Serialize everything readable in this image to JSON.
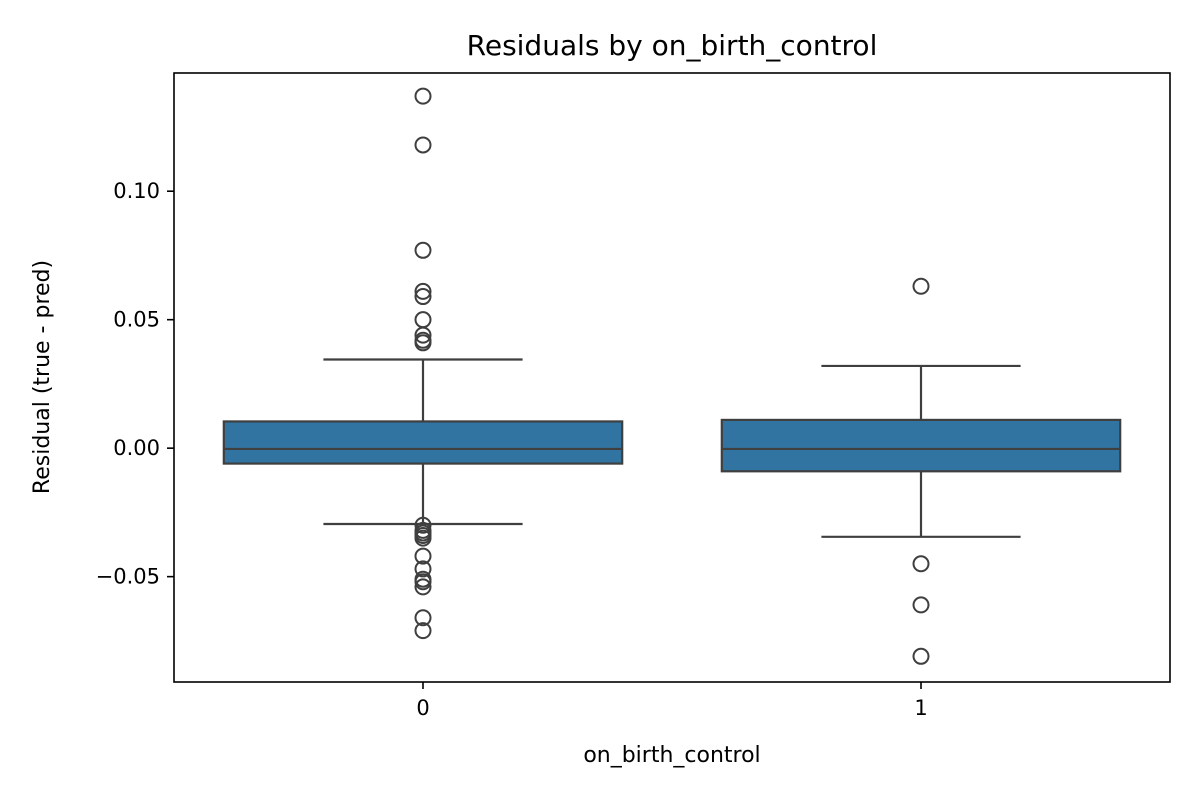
{
  "chart_data": {
    "type": "box",
    "title": "Residuals by on_birth_control",
    "xlabel": "on_birth_control",
    "ylabel": "Residual (true - pred)",
    "ylim": [
      -0.091,
      0.146
    ],
    "yticks": [
      -0.05,
      0.0,
      0.05,
      0.1
    ],
    "ytick_labels": [
      "−0.05",
      "0.00",
      "0.05",
      "0.10"
    ],
    "grid": false,
    "legend": "none",
    "box_color": "#3274a1",
    "line_color": "#3f3f3f",
    "categories": [
      "0",
      "1"
    ],
    "boxes": [
      {
        "category": "0",
        "whisker_low": -0.0295,
        "q1": -0.006,
        "median": -0.0003,
        "q3": 0.0104,
        "whisker_high": 0.0345,
        "outliers": [
          0.137,
          0.118,
          0.077,
          0.061,
          0.059,
          0.05,
          0.044,
          0.042,
          0.041,
          -0.03,
          -0.032,
          -0.033,
          -0.034,
          -0.035,
          -0.042,
          -0.047,
          -0.051,
          -0.052,
          -0.054,
          -0.066,
          -0.071
        ]
      },
      {
        "category": "1",
        "whisker_low": -0.0345,
        "q1": -0.009,
        "median": -0.0003,
        "q3": 0.011,
        "whisker_high": 0.032,
        "outliers": [
          0.063,
          -0.045,
          -0.061,
          -0.081
        ]
      }
    ]
  }
}
